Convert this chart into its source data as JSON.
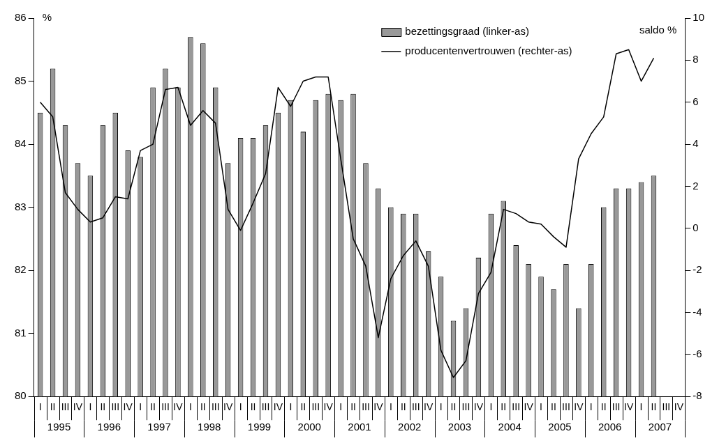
{
  "chart_data": {
    "type": "bar",
    "categories": [
      "I",
      "II",
      "III",
      "IV",
      "I",
      "II",
      "III",
      "IV",
      "I",
      "II",
      "III",
      "IV",
      "I",
      "II",
      "III",
      "IV",
      "I",
      "II",
      "III",
      "IV",
      "I",
      "II",
      "III",
      "IV",
      "I",
      "II",
      "III",
      "IV",
      "I",
      "II",
      "III",
      "IV",
      "I",
      "II",
      "III",
      "IV",
      "I",
      "II",
      "III",
      "IV",
      "I",
      "II",
      "III",
      "IV",
      "I",
      "II",
      "III",
      "IV",
      "I",
      "II",
      "III",
      "IV"
    ],
    "series": [
      {
        "name": "bezettingsgraad (linker-as)",
        "color": "#999999",
        "values": [
          84.5,
          85.2,
          84.3,
          83.7,
          83.5,
          84.3,
          84.5,
          83.9,
          83.8,
          84.9,
          85.2,
          84.9,
          85.7,
          85.6,
          84.9,
          83.7,
          84.1,
          84.1,
          84.3,
          84.5,
          84.7,
          84.2,
          84.7,
          84.8,
          84.7,
          84.8,
          83.7,
          83.3,
          83.0,
          82.9,
          82.9,
          82.3,
          81.9,
          81.2,
          81.4,
          82.2,
          82.9,
          83.1,
          82.4,
          82.1,
          81.9,
          81.7,
          82.1,
          81.4,
          82.1,
          83.0,
          83.3,
          83.3,
          83.4,
          83.5,
          null,
          null
        ]
      },
      {
        "name": "producentenvertrouwen (rechter-as)",
        "type": "line",
        "axis": "y2",
        "color": "#000000",
        "values": [
          6.0,
          5.3,
          1.7,
          0.9,
          0.3,
          0.5,
          1.5,
          1.4,
          3.7,
          4.0,
          6.6,
          6.7,
          4.9,
          5.6,
          5.0,
          0.9,
          -0.1,
          1.2,
          2.6,
          6.7,
          5.8,
          7.0,
          7.2,
          7.2,
          3.3,
          -0.5,
          -1.8,
          -5.2,
          -2.4,
          -1.3,
          -0.6,
          -1.8,
          -5.8,
          -7.1,
          -6.3,
          -3.1,
          -2.1,
          0.9,
          0.7,
          0.3,
          0.2,
          -0.4,
          -0.9,
          3.3,
          4.5,
          5.3,
          8.3,
          8.5,
          7.0,
          8.1,
          null,
          null
        ]
      }
    ],
    "ylim": [
      80,
      86
    ],
    "yticks": [
      80,
      81,
      82,
      83,
      84,
      85,
      86
    ],
    "y2lim": [
      -8,
      10
    ],
    "y2ticks": [
      -8,
      -6,
      -4,
      -2,
      0,
      2,
      4,
      6,
      8,
      10
    ],
    "ylabel": "%",
    "y2label": "saldo %",
    "annotations": [
      "1995",
      "1996",
      "1997",
      "1998",
      "1999",
      "2000",
      "2001",
      "2002",
      "2003",
      "2004",
      "2005",
      "2006",
      "2007"
    ],
    "legend": "top right",
    "grid": false,
    "marker": "none"
  }
}
